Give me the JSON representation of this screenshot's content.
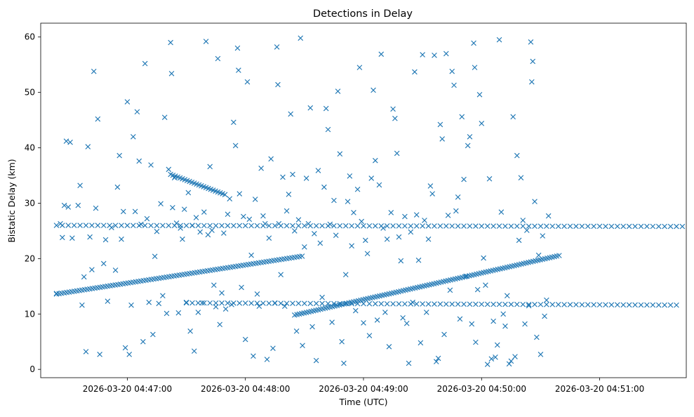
{
  "chart_data": {
    "type": "scatter",
    "title": "Detections in Delay",
    "xlabel": "Time (UTC)",
    "ylabel": "Bistatic Delay (km)",
    "marker": "x",
    "color": "#1f77b4",
    "xlim_seconds": [
      -44,
      284
    ],
    "ylim": [
      -1.5,
      62.5
    ],
    "x_ticks": [
      {
        "t": 0,
        "label": "2026-03-20 04:47:00"
      },
      {
        "t": 60,
        "label": "2026-03-20 04:48:00"
      },
      {
        "t": 120,
        "label": "2026-03-20 04:49:00"
      },
      {
        "t": 180,
        "label": "2026-03-20 04:50:00"
      },
      {
        "t": 240,
        "label": "2026-03-20 04:51:00"
      }
    ],
    "y_ticks": [
      0,
      10,
      20,
      30,
      40,
      50,
      60
    ],
    "x_reference": "seconds after 2026-03-20 04:47:00 UTC",
    "tracks": [
      {
        "name": "rising track A",
        "t_start": -36,
        "t_end": 90,
        "d_start": 13.6,
        "d_end": 20.5,
        "step": 1.3
      },
      {
        "name": "rising track B",
        "t_start": 85,
        "t_end": 220,
        "d_start": 9.8,
        "d_end": 20.6,
        "step": 1.2
      },
      {
        "name": "falling track",
        "t_start": 22,
        "t_end": 50,
        "d_start": 35.2,
        "d_end": 31.5,
        "step": 1.2
      },
      {
        "name": "upper constant band 1",
        "t_start": -36,
        "t_end": 284,
        "d_start": 26.0,
        "d_end": 25.8,
        "step": 3.0
      },
      {
        "name": "lower constant band 1",
        "t_start": 30,
        "t_end": 280,
        "d_start": 12.0,
        "d_end": 11.6,
        "step": 3.0
      }
    ],
    "points": [
      [
        -36,
        13.7
      ],
      [
        -34,
        26.3
      ],
      [
        -33,
        23.8
      ],
      [
        -32,
        29.6
      ],
      [
        -31,
        41.2
      ],
      [
        -30,
        29.3
      ],
      [
        -29,
        41.0
      ],
      [
        -28,
        23.7
      ],
      [
        -25,
        29.6
      ],
      [
        -24,
        33.2
      ],
      [
        -23,
        11.6
      ],
      [
        -22,
        16.7
      ],
      [
        -21,
        3.2
      ],
      [
        -20,
        40.2
      ],
      [
        -19,
        23.9
      ],
      [
        -18,
        18.0
      ],
      [
        -17,
        53.8
      ],
      [
        -16,
        29.1
      ],
      [
        -15,
        45.2
      ],
      [
        -14,
        2.7
      ],
      [
        -12,
        19.1
      ],
      [
        -11,
        23.4
      ],
      [
        -10,
        12.3
      ],
      [
        -8,
        25.6
      ],
      [
        -6,
        17.9
      ],
      [
        -5,
        32.9
      ],
      [
        -4,
        38.6
      ],
      [
        -3,
        23.5
      ],
      [
        -2,
        28.5
      ],
      [
        -1,
        3.9
      ],
      [
        0,
        48.3
      ],
      [
        1,
        2.7
      ],
      [
        2,
        11.6
      ],
      [
        3,
        42.0
      ],
      [
        4,
        28.5
      ],
      [
        5,
        46.5
      ],
      [
        6,
        37.6
      ],
      [
        7,
        26.2
      ],
      [
        8,
        5.0
      ],
      [
        9,
        55.2
      ],
      [
        10,
        27.2
      ],
      [
        11,
        12.1
      ],
      [
        12,
        36.9
      ],
      [
        13,
        6.3
      ],
      [
        14,
        20.4
      ],
      [
        15,
        24.9
      ],
      [
        16,
        11.9
      ],
      [
        17,
        29.9
      ],
      [
        18,
        13.3
      ],
      [
        19,
        45.5
      ],
      [
        20,
        10.1
      ],
      [
        21,
        36.1
      ],
      [
        22,
        59.0
      ],
      [
        22.5,
        53.4
      ],
      [
        23,
        29.2
      ],
      [
        24,
        34.6
      ],
      [
        25,
        26.4
      ],
      [
        26,
        10.2
      ],
      [
        27,
        25.5
      ],
      [
        28,
        23.5
      ],
      [
        29,
        28.9
      ],
      [
        30,
        12.1
      ],
      [
        31,
        31.9
      ],
      [
        32,
        6.9
      ],
      [
        33,
        26.0
      ],
      [
        34,
        3.3
      ],
      [
        35,
        27.4
      ],
      [
        36,
        10.3
      ],
      [
        37,
        24.8
      ],
      [
        38,
        12.0
      ],
      [
        39,
        28.4
      ],
      [
        40,
        59.2
      ],
      [
        41,
        24.3
      ],
      [
        42,
        36.6
      ],
      [
        43,
        25.1
      ],
      [
        44,
        15.2
      ],
      [
        45,
        11.3
      ],
      [
        46,
        56.1
      ],
      [
        47,
        8.1
      ],
      [
        48,
        13.8
      ],
      [
        49,
        24.6
      ],
      [
        50,
        10.9
      ],
      [
        51,
        28.0
      ],
      [
        52,
        30.8
      ],
      [
        53,
        11.7
      ],
      [
        54,
        44.6
      ],
      [
        55,
        40.4
      ],
      [
        56,
        58.0
      ],
      [
        56.5,
        54.0
      ],
      [
        57,
        31.7
      ],
      [
        58,
        14.8
      ],
      [
        59,
        27.6
      ],
      [
        60,
        5.4
      ],
      [
        61,
        51.9
      ],
      [
        62,
        27.1
      ],
      [
        63,
        20.6
      ],
      [
        64,
        2.4
      ],
      [
        65,
        30.7
      ],
      [
        66,
        13.6
      ],
      [
        67,
        11.4
      ],
      [
        68,
        36.3
      ],
      [
        69,
        27.7
      ],
      [
        70,
        26.3
      ],
      [
        71,
        1.8
      ],
      [
        72,
        23.7
      ],
      [
        73,
        38.0
      ],
      [
        74,
        3.8
      ],
      [
        75,
        12.0
      ],
      [
        76,
        58.2
      ],
      [
        76.5,
        51.4
      ],
      [
        77,
        26.3
      ],
      [
        78,
        17.1
      ],
      [
        79,
        34.7
      ],
      [
        80,
        11.4
      ],
      [
        81,
        28.6
      ],
      [
        82,
        31.6
      ],
      [
        83,
        46.1
      ],
      [
        84,
        35.2
      ],
      [
        85,
        25.0
      ],
      [
        86,
        6.9
      ],
      [
        87,
        27.0
      ],
      [
        88,
        59.8
      ],
      [
        89,
        4.3
      ],
      [
        90,
        22.1
      ],
      [
        91,
        34.5
      ],
      [
        92,
        26.3
      ],
      [
        93,
        47.2
      ],
      [
        94,
        7.7
      ],
      [
        95,
        24.5
      ],
      [
        96,
        1.6
      ],
      [
        97,
        35.9
      ],
      [
        98,
        22.8
      ],
      [
        99,
        13.0
      ],
      [
        100,
        32.9
      ],
      [
        101,
        47.1
      ],
      [
        102,
        43.3
      ],
      [
        103,
        26.2
      ],
      [
        104,
        8.5
      ],
      [
        105,
        30.5
      ],
      [
        106,
        24.2
      ],
      [
        107,
        50.2
      ],
      [
        108,
        38.9
      ],
      [
        109,
        5.0
      ],
      [
        110,
        1.1
      ],
      [
        111,
        17.1
      ],
      [
        112,
        30.3
      ],
      [
        113,
        34.9
      ],
      [
        114,
        22.3
      ],
      [
        115,
        28.3
      ],
      [
        116,
        10.6
      ],
      [
        117,
        32.5
      ],
      [
        118,
        54.5
      ],
      [
        119,
        26.7
      ],
      [
        120,
        8.4
      ],
      [
        121,
        23.3
      ],
      [
        122,
        20.9
      ],
      [
        123,
        6.1
      ],
      [
        124,
        34.5
      ],
      [
        125,
        50.4
      ],
      [
        126,
        37.7
      ],
      [
        127,
        8.9
      ],
      [
        128,
        33.3
      ],
      [
        129,
        56.9
      ],
      [
        130,
        25.5
      ],
      [
        131,
        10.3
      ],
      [
        132,
        23.5
      ],
      [
        133,
        4.1
      ],
      [
        134,
        28.3
      ],
      [
        135,
        47.0
      ],
      [
        136,
        45.3
      ],
      [
        137,
        39.0
      ],
      [
        138,
        23.9
      ],
      [
        139,
        19.6
      ],
      [
        140,
        9.3
      ],
      [
        141,
        27.6
      ],
      [
        142,
        8.3
      ],
      [
        143,
        1.1
      ],
      [
        144,
        24.8
      ],
      [
        145,
        12.1
      ],
      [
        146,
        53.7
      ],
      [
        147,
        27.9
      ],
      [
        148,
        19.7
      ],
      [
        149,
        4.8
      ],
      [
        150,
        56.8
      ],
      [
        151,
        26.9
      ],
      [
        152,
        10.3
      ],
      [
        153,
        23.5
      ],
      [
        154,
        33.1
      ],
      [
        155,
        31.7
      ],
      [
        156,
        56.7
      ],
      [
        157,
        1.4
      ],
      [
        158,
        2.0
      ],
      [
        159,
        44.2
      ],
      [
        160,
        41.6
      ],
      [
        161,
        6.3
      ],
      [
        162,
        57.0
      ],
      [
        163,
        27.8
      ],
      [
        164,
        14.3
      ],
      [
        165,
        53.8
      ],
      [
        166,
        51.3
      ],
      [
        167,
        28.6
      ],
      [
        168,
        31.1
      ],
      [
        169,
        9.1
      ],
      [
        170,
        45.6
      ],
      [
        171,
        34.3
      ],
      [
        172,
        16.8
      ],
      [
        173,
        40.4
      ],
      [
        174,
        42.0
      ],
      [
        175,
        8.2
      ],
      [
        176,
        58.9
      ],
      [
        176.5,
        54.5
      ],
      [
        177,
        4.9
      ],
      [
        178,
        14.4
      ],
      [
        179,
        49.6
      ],
      [
        180,
        44.4
      ],
      [
        181,
        20.1
      ],
      [
        182,
        15.2
      ],
      [
        183,
        0.9
      ],
      [
        184,
        34.4
      ],
      [
        185,
        1.9
      ],
      [
        186,
        8.7
      ],
      [
        187,
        2.2
      ],
      [
        188,
        4.4
      ],
      [
        189,
        59.5
      ],
      [
        190,
        28.4
      ],
      [
        191,
        10.0
      ],
      [
        192,
        7.8
      ],
      [
        193,
        13.3
      ],
      [
        194,
        1.0
      ],
      [
        195,
        1.5
      ],
      [
        196,
        45.6
      ],
      [
        197,
        2.3
      ],
      [
        198,
        38.6
      ],
      [
        199,
        23.3
      ],
      [
        200,
        34.6
      ],
      [
        201,
        26.9
      ],
      [
        202,
        8.2
      ],
      [
        203,
        25.1
      ],
      [
        204,
        11.5
      ],
      [
        205,
        59.1
      ],
      [
        205.5,
        51.9
      ],
      [
        206,
        55.6
      ],
      [
        207,
        30.3
      ],
      [
        208,
        5.8
      ],
      [
        209,
        20.6
      ],
      [
        210,
        2.7
      ],
      [
        211,
        24.1
      ],
      [
        212,
        9.6
      ],
      [
        213,
        12.5
      ],
      [
        214,
        27.7
      ]
    ]
  }
}
